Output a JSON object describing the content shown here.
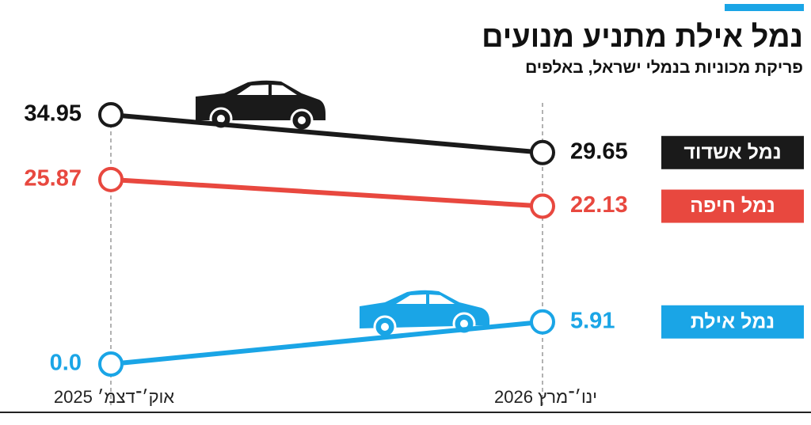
{
  "chart_data": {
    "type": "slope",
    "title": "נמל אילת מתניע מנועים",
    "subtitle": "פריקת מכוניות בנמלי ישראל, באלפים",
    "categories": [
      "אוק׳־דצמ׳ 2025",
      "ינו׳־מרץ 2026"
    ],
    "series": [
      {
        "name": "נמל אשדוד",
        "color": "#1a1a1a",
        "values": [
          34.95,
          29.65
        ]
      },
      {
        "name": "נמל חיפה",
        "color": "#e8483f",
        "values": [
          25.87,
          22.13
        ]
      },
      {
        "name": "נמל אילת",
        "color": "#1aa5e6",
        "values": [
          0,
          5.91
        ],
        "value_labels": [
          "0.0",
          "5.91"
        ]
      }
    ]
  }
}
